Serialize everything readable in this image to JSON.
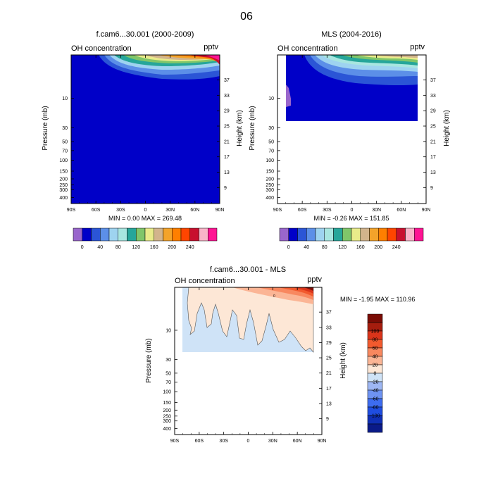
{
  "page_title": "06",
  "colors": {
    "background": "#ffffff",
    "panel_palette": [
      "#9966cc",
      "#0000c8",
      "#2b55d6",
      "#5c8fe8",
      "#9ed3f0",
      "#a8e6e0",
      "#26a69a",
      "#80c66a",
      "#e9eb8a",
      "#d2b48c",
      "#f3a32a",
      "#ff7f00",
      "#ff4500",
      "#c8102e",
      "#f9b4c8",
      "#ff1493"
    ],
    "diff_palette": [
      "#0a1a88",
      "#0f2fb5",
      "#1f4de0",
      "#3d6cf0",
      "#6e93f2",
      "#9eb7f3",
      "#cfe3f7",
      "#fde7d6",
      "#fbb595",
      "#f8885f",
      "#f25a2e",
      "#d9341a",
      "#a51d0e",
      "#7a0c05"
    ]
  },
  "chart_data": [
    {
      "type": "heatmap",
      "title": "f.cam6...30.001 (2000-2009)",
      "left_string": "OH concentration",
      "right_string": "pptv",
      "xlabel": "",
      "ylabel": "Pressure (mb)",
      "ylabel_right": "Height (km)",
      "x_ticks": [
        "90S",
        "60S",
        "30S",
        "0",
        "30N",
        "60N",
        "90N"
      ],
      "y_ticks": [
        "10",
        "30",
        "50",
        "70",
        "100",
        "150",
        "200",
        "250",
        "300",
        "400"
      ],
      "y_ticks_right": [
        "37",
        "33",
        "29",
        "25",
        "21",
        "17",
        "13",
        "9"
      ],
      "stats": "MIN =   0.00   MAX = 269.48",
      "min": 0.0,
      "max": 269.48,
      "colorbar_labels": [
        "0",
        "40",
        "80",
        "120",
        "160",
        "200",
        "240"
      ],
      "colorbar_levels": [
        0,
        20,
        40,
        60,
        80,
        100,
        120,
        140,
        160,
        180,
        200,
        220,
        240,
        260
      ],
      "data_extent_latitude": [
        -90,
        90
      ]
    },
    {
      "type": "heatmap",
      "title": "MLS (2004-2016)",
      "left_string": "OH concentration",
      "right_string": "pptv",
      "xlabel": "",
      "ylabel": "Pressure (mb)",
      "ylabel_right": "Height (km)",
      "x_ticks": [
        "90S",
        "60S",
        "30S",
        "0",
        "30N",
        "60N",
        "90N"
      ],
      "y_ticks": [
        "10",
        "30",
        "50",
        "70",
        "100",
        "150",
        "200",
        "250",
        "300",
        "400"
      ],
      "y_ticks_right": [
        "37",
        "33",
        "29",
        "25",
        "21",
        "17",
        "13",
        "9"
      ],
      "stats": "MIN =  -0.26   MAX = 151.85",
      "min": -0.26,
      "max": 151.85,
      "colorbar_labels": [
        "0",
        "40",
        "80",
        "120",
        "160",
        "200",
        "240"
      ],
      "colorbar_levels": [
        0,
        20,
        40,
        60,
        80,
        100,
        120,
        140,
        160,
        180,
        200,
        220,
        240,
        260
      ],
      "data_extent_latitude": [
        -82,
        82
      ],
      "data_extent_pressure_mb": [
        30,
        2
      ]
    },
    {
      "type": "heatmap",
      "title": "f.cam6...30.001 - MLS",
      "left_string": "OH concentration",
      "right_string": "pptv",
      "xlabel": "",
      "ylabel": "Pressure (mb)",
      "ylabel_right": "Height (km)",
      "x_ticks": [
        "90S",
        "60S",
        "30S",
        "0",
        "30N",
        "60N",
        "90N"
      ],
      "y_ticks": [
        "10",
        "30",
        "50",
        "70",
        "100",
        "150",
        "200",
        "250",
        "300",
        "400"
      ],
      "y_ticks_right": [
        "37",
        "33",
        "29",
        "25",
        "21",
        "17",
        "13",
        "9"
      ],
      "stats": "MIN =  -1.95   MAX = 110.96",
      "min": -1.95,
      "max": 110.96,
      "colorbar_labels": [
        "100",
        "80",
        "60",
        "40",
        "20",
        "0",
        "-20",
        "-40",
        "-60",
        "-80",
        "-100"
      ],
      "contour_labels": [
        "0"
      ],
      "data_extent_latitude": [
        -82,
        82
      ],
      "data_extent_pressure_mb": [
        30,
        2
      ]
    }
  ]
}
